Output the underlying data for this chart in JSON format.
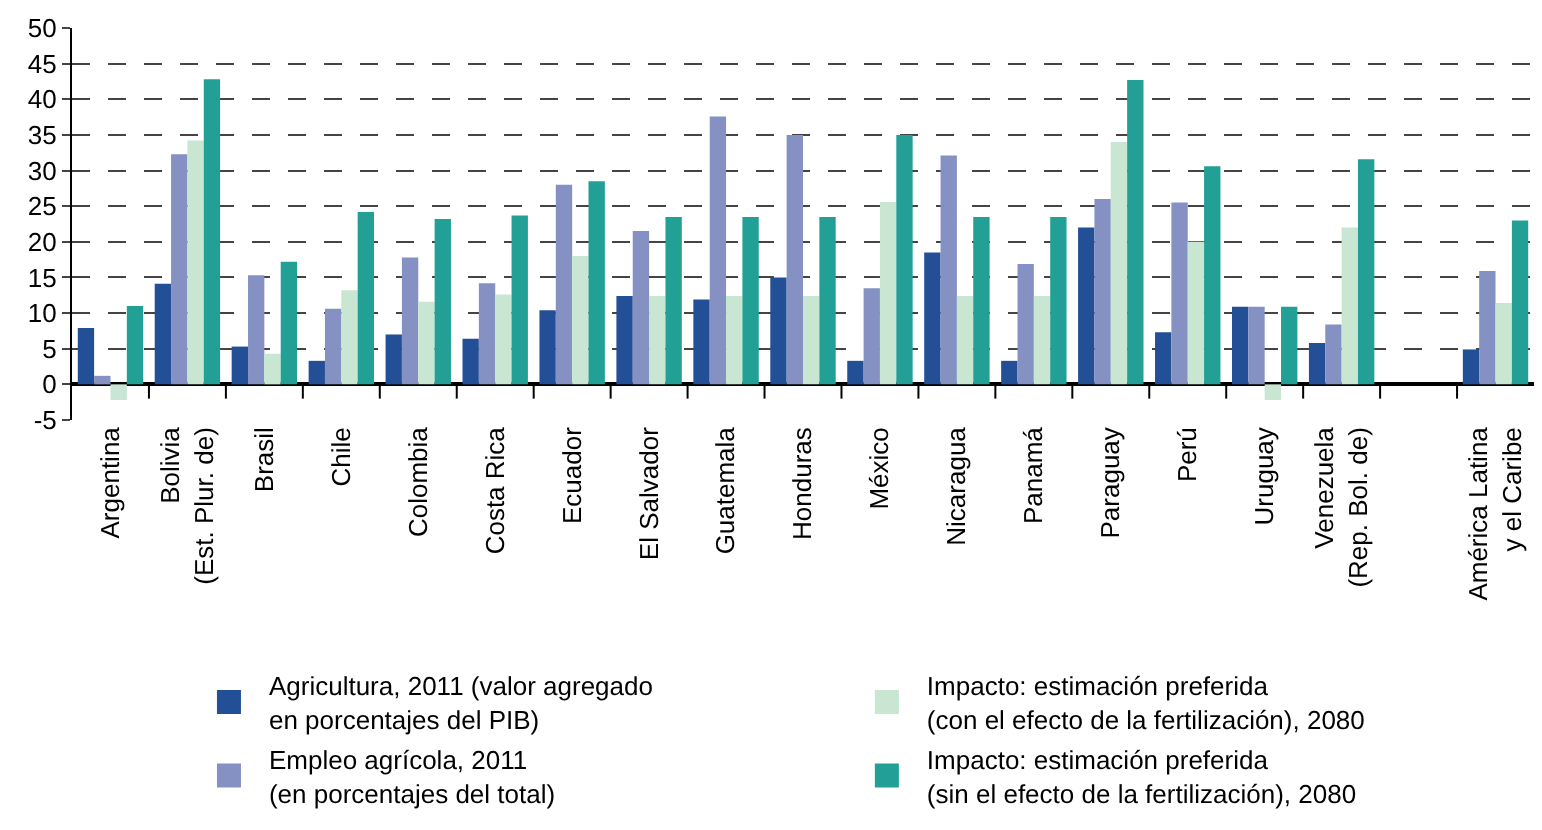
{
  "chart_data": {
    "type": "bar",
    "categories": [
      "Argentina",
      "Bolivia\n(Est. Plur. de)",
      "Brasil",
      "Chile",
      "Colombia",
      "Costa Rica",
      "Ecuador",
      "El Salvador",
      "Guatemala",
      "Honduras",
      "México",
      "Nicaragua",
      "Panamá",
      "Paraguay",
      "Perú",
      "Uruguay",
      "Venezuela\n(Rep. Bol. de)",
      null,
      "América Latina\ny el Caribe"
    ],
    "series": [
      {
        "name": "Agricultura, 2011 (valor agregado\nen porcentajes del PIB)",
        "color": "#234f96",
        "values": [
          7.9,
          14.1,
          5.3,
          3.3,
          7.0,
          6.4,
          10.4,
          12.4,
          11.9,
          15.0,
          3.3,
          18.5,
          3.3,
          22.0,
          7.3,
          10.9,
          5.8,
          null,
          4.9
        ]
      },
      {
        "name": "Empleo agrícola, 2011\n(en porcentajes del total)",
        "color": "#8591c3",
        "values": [
          1.2,
          32.3,
          15.3,
          10.6,
          17.8,
          14.2,
          28.0,
          21.5,
          37.6,
          35.0,
          13.5,
          32.1,
          16.9,
          26.0,
          25.5,
          10.9,
          8.4,
          null,
          15.9
        ]
      },
      {
        "name": "Impacto: estimación preferida\n(con el efecto de la fertilización), 2080",
        "color": "#c8e6d2",
        "values": [
          -2.2,
          34.2,
          4.3,
          13.2,
          11.6,
          12.6,
          18.0,
          12.4,
          12.4,
          12.4,
          25.6,
          12.4,
          12.4,
          34.0,
          20.0,
          -2.2,
          22.0,
          null,
          11.4
        ]
      },
      {
        "name": "Impacto: estimación preferida\n(sin el efecto de la fertilización), 2080",
        "color": "#22a096",
        "values": [
          11.0,
          42.8,
          17.2,
          24.2,
          23.2,
          23.7,
          28.5,
          23.5,
          23.5,
          23.5,
          35.0,
          23.5,
          23.5,
          42.7,
          30.6,
          10.9,
          31.6,
          null,
          23.0
        ]
      }
    ],
    "ylim": [
      -5,
      50
    ],
    "yticks": [
      -5,
      0,
      5,
      10,
      15,
      20,
      25,
      30,
      35,
      40,
      45,
      50
    ],
    "grid": "y",
    "legend": "bottom"
  }
}
